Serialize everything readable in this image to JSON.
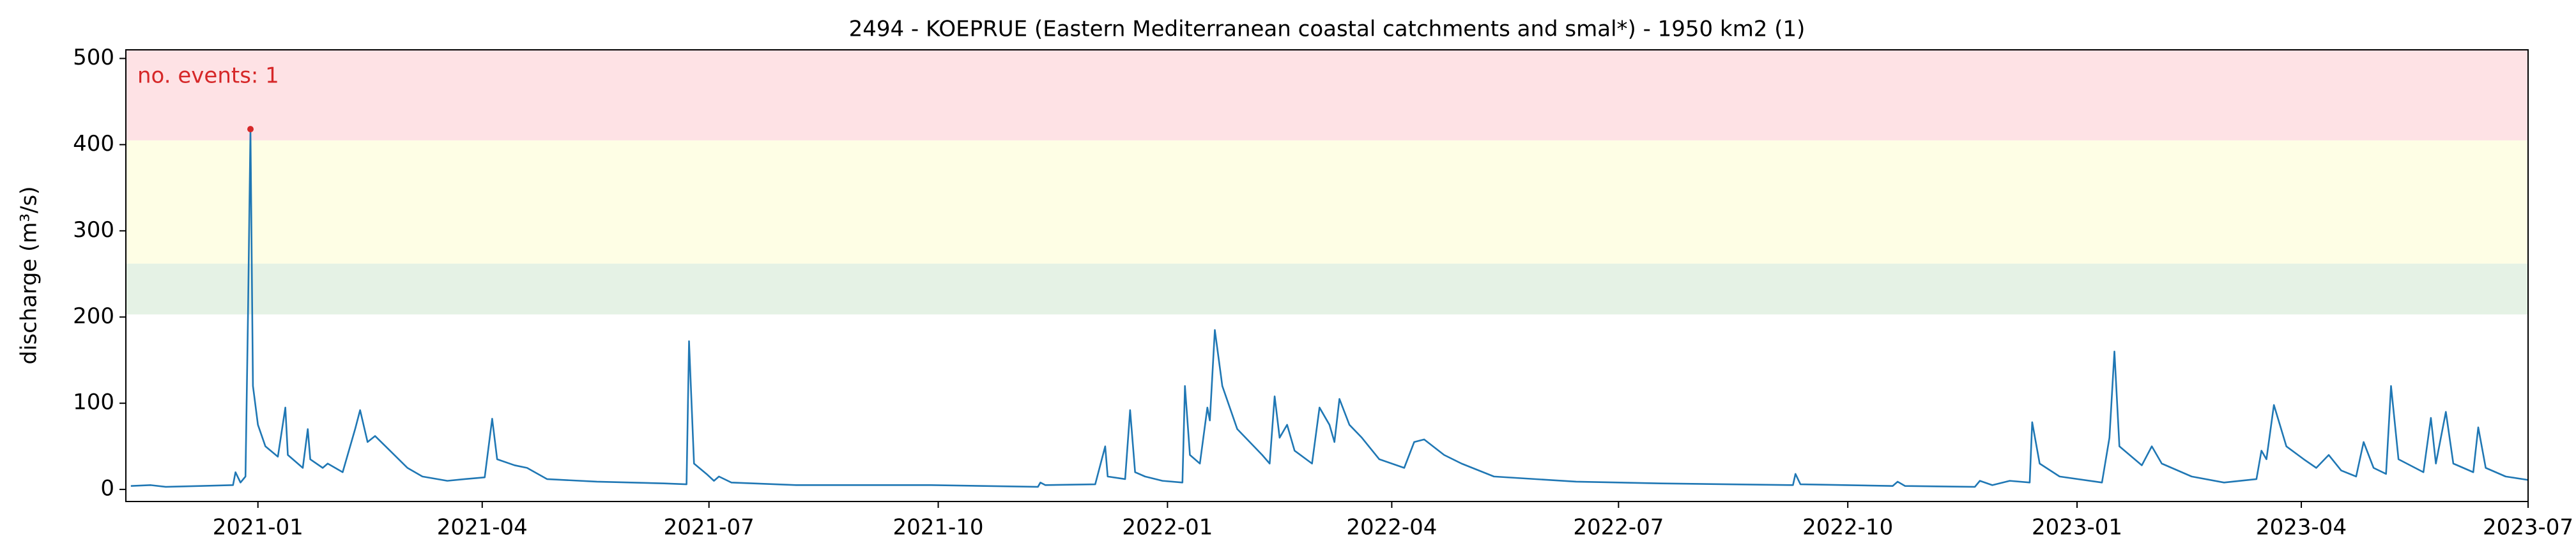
{
  "chart_data": {
    "type": "line",
    "title": "2494 - KOEPRUE (Eastern Mediterranean coastal catchments and smal*) - 1950 km2 (1)",
    "ylabel": "discharge (m³/s)",
    "annotation": "no. events: 1",
    "annotation_color": "#d62728",
    "color": "#1f77b4",
    "xlim": [
      "2020-11-09",
      "2023-07-01"
    ],
    "xticks": [
      {
        "value": "2021-01-01",
        "label": "2021-01"
      },
      {
        "value": "2021-04-01",
        "label": "2021-04"
      },
      {
        "value": "2021-07-01",
        "label": "2021-07"
      },
      {
        "value": "2021-10-01",
        "label": "2021-10"
      },
      {
        "value": "2022-01-01",
        "label": "2022-01"
      },
      {
        "value": "2022-04-01",
        "label": "2022-04"
      },
      {
        "value": "2022-07-01",
        "label": "2022-07"
      },
      {
        "value": "2022-10-01",
        "label": "2022-10"
      },
      {
        "value": "2023-01-01",
        "label": "2023-01"
      },
      {
        "value": "2023-04-01",
        "label": "2023-04"
      },
      {
        "value": "2023-07-01",
        "label": "2023-07"
      }
    ],
    "ylim": [
      -14,
      510
    ],
    "yticks": [
      0,
      100,
      200,
      300,
      400,
      500
    ],
    "bands": [
      {
        "from": 203,
        "to": 262,
        "color": "#e5f2e5"
      },
      {
        "from": 262,
        "to": 405,
        "color": "#fefee5"
      },
      {
        "from": 405,
        "to": 510,
        "color": "#fee2e5"
      }
    ],
    "events": {
      "x": [
        "2020-12-29"
      ],
      "values": [
        418
      ],
      "color": "#d62728"
    },
    "x": [
      "2020-11-11",
      "2020-11-19",
      "2020-11-25",
      "2020-12-09",
      "2020-12-22",
      "2020-12-23",
      "2020-12-25",
      "2020-12-27",
      "2020-12-28",
      "2020-12-29",
      "2020-12-30",
      "2021-01-01",
      "2021-01-04",
      "2021-01-09",
      "2021-01-12",
      "2021-01-13",
      "2021-01-17",
      "2021-01-19",
      "2021-01-21",
      "2021-01-22",
      "2021-01-27",
      "2021-01-29",
      "2021-02-04",
      "2021-02-09",
      "2021-02-11",
      "2021-02-14",
      "2021-02-17",
      "2021-02-23",
      "2021-03-02",
      "2021-03-08",
      "2021-03-18",
      "2021-03-25",
      "2021-04-02",
      "2021-04-05",
      "2021-04-07",
      "2021-04-14",
      "2021-04-19",
      "2021-04-27",
      "2021-05-17",
      "2021-06-13",
      "2021-06-22",
      "2021-06-23",
      "2021-06-25",
      "2021-06-30",
      "2021-07-03",
      "2021-07-05",
      "2021-07-10",
      "2021-08-05",
      "2021-09-28",
      "2021-11-10",
      "2021-11-11",
      "2021-11-13",
      "2021-12-03",
      "2021-12-07",
      "2021-12-08",
      "2021-12-15",
      "2021-12-17",
      "2021-12-19",
      "2021-12-23",
      "2021-12-30",
      "2022-01-07",
      "2022-01-08",
      "2022-01-10",
      "2022-01-14",
      "2022-01-17",
      "2022-01-18",
      "2022-01-20",
      "2022-01-23",
      "2022-01-29",
      "2022-02-08",
      "2022-02-11",
      "2022-02-13",
      "2022-02-15",
      "2022-02-18",
      "2022-02-21",
      "2022-02-28",
      "2022-03-03",
      "2022-03-07",
      "2022-03-09",
      "2022-03-11",
      "2022-03-15",
      "2022-03-20",
      "2022-03-27",
      "2022-04-06",
      "2022-04-10",
      "2022-04-14",
      "2022-04-22",
      "2022-04-29",
      "2022-05-12",
      "2022-06-14",
      "2022-07-18",
      "2022-09-09",
      "2022-09-10",
      "2022-09-12",
      "2022-10-19",
      "2022-10-21",
      "2022-10-24",
      "2022-11-21",
      "2022-11-23",
      "2022-11-28",
      "2022-12-05",
      "2022-12-13",
      "2022-12-14",
      "2022-12-17",
      "2022-12-25",
      "2023-01-11",
      "2023-01-14",
      "2023-01-16",
      "2023-01-18",
      "2023-01-27",
      "2023-01-31",
      "2023-02-04",
      "2023-02-16",
      "2023-03-01",
      "2023-03-14",
      "2023-03-16",
      "2023-03-18",
      "2023-03-21",
      "2023-03-26",
      "2023-04-02",
      "2023-04-07",
      "2023-04-12",
      "2023-04-17",
      "2023-04-23",
      "2023-04-26",
      "2023-04-30",
      "2023-05-05",
      "2023-05-07",
      "2023-05-10",
      "2023-05-20",
      "2023-05-23",
      "2023-05-25",
      "2023-05-29",
      "2023-06-01",
      "2023-06-09",
      "2023-06-11",
      "2023-06-14",
      "2023-06-22",
      "2023-07-01"
    ],
    "values": [
      4,
      5,
      3,
      4,
      5,
      20,
      8,
      15,
      200,
      418,
      120,
      75,
      50,
      38,
      95,
      40,
      30,
      25,
      70,
      35,
      25,
      30,
      20,
      70,
      92,
      55,
      62,
      45,
      25,
      15,
      10,
      12,
      14,
      82,
      35,
      28,
      25,
      12,
      9,
      7,
      6,
      172,
      30,
      18,
      10,
      15,
      8,
      5,
      5,
      3,
      8,
      5,
      6,
      50,
      15,
      12,
      92,
      20,
      15,
      10,
      8,
      120,
      40,
      30,
      95,
      80,
      185,
      120,
      70,
      40,
      30,
      108,
      60,
      75,
      45,
      30,
      95,
      75,
      55,
      105,
      75,
      60,
      35,
      25,
      55,
      58,
      40,
      30,
      15,
      9,
      7,
      5,
      18,
      6,
      4,
      9,
      4,
      3,
      10,
      5,
      10,
      8,
      78,
      30,
      15,
      8,
      60,
      160,
      50,
      28,
      50,
      30,
      15,
      8,
      12,
      45,
      35,
      98,
      50,
      35,
      25,
      40,
      22,
      15,
      55,
      25,
      18,
      120,
      35,
      20,
      83,
      30,
      90,
      30,
      20,
      72,
      25,
      15,
      11
    ]
  }
}
